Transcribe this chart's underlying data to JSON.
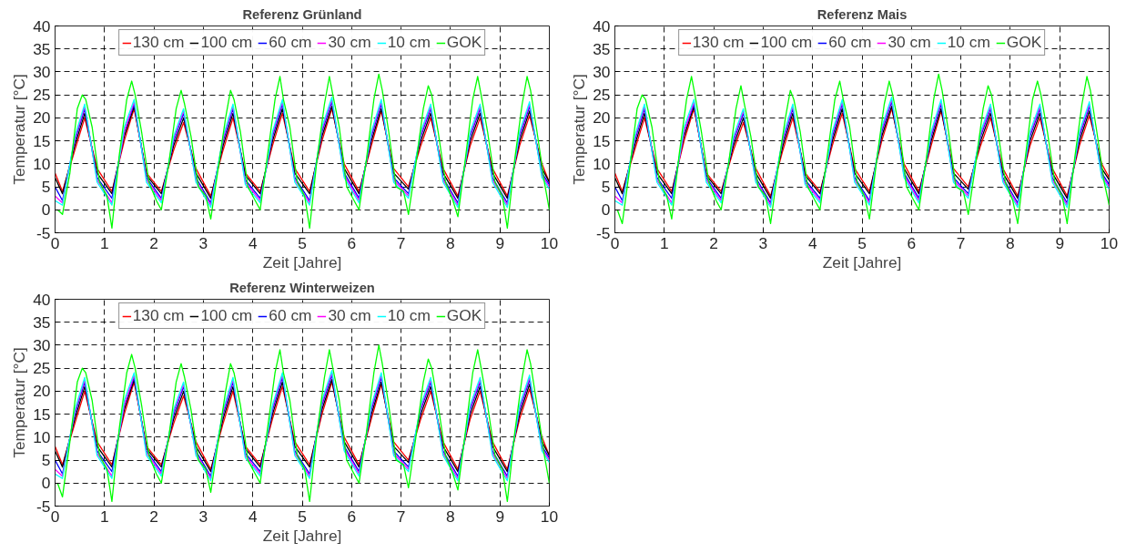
{
  "chart_data": [
    {
      "type": "line",
      "title": "Referenz Grünland",
      "xlabel": "Zeit [Jahre]",
      "ylabel": "Temperatur [°C]",
      "xlim": [
        0,
        10
      ],
      "ylim": [
        -5,
        40
      ],
      "xticks": [
        0,
        1,
        2,
        3,
        4,
        5,
        6,
        7,
        8,
        9,
        10
      ],
      "yticks": [
        -5,
        0,
        5,
        10,
        15,
        20,
        25,
        30,
        35,
        40
      ],
      "grid": true,
      "legend": "top",
      "line_style": "solid",
      "x": [
        0,
        0.15,
        0.4,
        0.6,
        0.85,
        1.15,
        1.4,
        1.6,
        1.85,
        2.15,
        2.4,
        2.6,
        2.85,
        3.15,
        3.4,
        3.6,
        3.85,
        4.15,
        4.4,
        4.6,
        4.85,
        5.15,
        5.4,
        5.6,
        5.85,
        6.15,
        6.4,
        6.6,
        6.85,
        7.15,
        7.4,
        7.6,
        7.85,
        8.15,
        8.4,
        8.6,
        8.85,
        9.15,
        9.4,
        9.6,
        9.85,
        10
      ],
      "series": [
        {
          "name": "130 cm",
          "color": "#ff0000",
          "values": [
            8,
            4,
            13,
            20,
            9,
            4,
            15,
            22,
            8,
            4,
            13,
            19,
            9,
            3,
            13,
            20,
            8,
            4,
            14,
            21,
            9,
            4,
            15,
            22,
            10,
            4,
            14,
            21.5,
            9,
            5,
            14,
            20,
            9,
            3,
            14,
            20,
            9,
            3,
            14,
            20.5,
            10,
            6
          ]
        },
        {
          "name": "100 cm",
          "color": "#000000",
          "values": [
            7,
            3.5,
            14,
            21,
            8,
            3.5,
            16,
            22.5,
            7.5,
            3.5,
            14,
            20,
            8,
            2.5,
            14,
            21,
            7.5,
            3.5,
            15,
            22,
            8,
            3.5,
            16,
            22.5,
            9,
            3.5,
            15,
            22,
            8,
            4.5,
            15,
            21,
            8,
            2.5,
            15,
            21,
            8,
            2.5,
            15,
            21.5,
            9,
            6
          ]
        },
        {
          "name": "60 cm",
          "color": "#0000ff",
          "values": [
            5,
            2,
            15,
            22,
            7,
            2.5,
            17,
            23,
            7,
            2.5,
            15,
            21,
            7,
            1.5,
            15,
            22,
            6.5,
            2.5,
            16,
            23,
            7,
            2,
            17,
            23.5,
            8,
            2.5,
            16,
            23,
            7,
            3.5,
            16,
            22,
            7,
            1.5,
            16,
            22,
            7,
            1.5,
            16,
            22.5,
            8,
            5.5
          ]
        },
        {
          "name": "30 cm",
          "color": "#ff00ff",
          "values": [
            3,
            1.5,
            15.5,
            22.5,
            6.5,
            1.5,
            17,
            23.5,
            6.5,
            2,
            15.5,
            21.5,
            6.5,
            1,
            15.5,
            22.5,
            6,
            2,
            16.5,
            23.5,
            6.5,
            1.5,
            17.5,
            24,
            7.5,
            2,
            16.5,
            23.5,
            6.5,
            3,
            16.5,
            22.5,
            6.5,
            1,
            16.5,
            22.5,
            6.5,
            1,
            16.5,
            23,
            7.5,
            5
          ]
        },
        {
          "name": "10 cm",
          "color": "#00ffff",
          "values": [
            2,
            1,
            16,
            23,
            6,
            1,
            18,
            24,
            6,
            1.5,
            16,
            22,
            6,
            0.5,
            16,
            23,
            5.5,
            1.5,
            17,
            24,
            6,
            1,
            18,
            24.5,
            7,
            1.5,
            17,
            24,
            6,
            2.5,
            17,
            23,
            6,
            0.5,
            17,
            23,
            6,
            0.5,
            17,
            23.5,
            7,
            4.5
          ]
        },
        {
          "name": "GOK",
          "color": "#00ff00",
          "x": [
            0.05,
            0.15,
            0.3,
            0.45,
            0.55,
            0.62,
            0.75,
            0.9,
            1.05,
            1.15,
            1.3,
            1.45,
            1.55,
            1.62,
            1.75,
            1.9,
            2.05,
            2.15,
            2.3,
            2.45,
            2.55,
            2.62,
            2.75,
            2.9,
            3.05,
            3.15,
            3.3,
            3.45,
            3.55,
            3.62,
            3.75,
            3.9,
            4.05,
            4.15,
            4.3,
            4.45,
            4.55,
            4.62,
            4.75,
            4.9,
            5.05,
            5.15,
            5.3,
            5.45,
            5.55,
            5.62,
            5.75,
            5.9,
            6.05,
            6.15,
            6.3,
            6.45,
            6.55,
            6.62,
            6.75,
            6.9,
            7.05,
            7.15,
            7.3,
            7.45,
            7.55,
            7.62,
            7.75,
            7.9,
            8.05,
            8.15,
            8.3,
            8.45,
            8.55,
            8.62,
            8.75,
            8.9,
            9.05,
            9.15,
            9.3,
            9.45,
            9.55,
            9.62,
            9.75,
            9.9,
            10
          ],
          "values": [
            0,
            -1,
            8,
            22,
            25,
            24,
            18,
            6,
            3,
            -4,
            12,
            24,
            28,
            25,
            17,
            6,
            2,
            0,
            10,
            22,
            26,
            23,
            16,
            5,
            3,
            -2,
            9,
            20,
            26,
            24,
            17,
            5,
            2,
            0,
            12,
            24,
            29,
            24,
            18,
            6,
            3,
            -4,
            11,
            23,
            29,
            25,
            18,
            5,
            2,
            0,
            11,
            24,
            29.5,
            26,
            17,
            5,
            4,
            -1,
            10,
            22,
            27,
            25,
            17,
            6,
            2,
            -1.5,
            11,
            24,
            29,
            25,
            17,
            6,
            3,
            -4,
            11,
            23,
            29,
            26,
            17,
            6,
            0
          ]
        }
      ]
    },
    {
      "type": "line",
      "title": "Referenz Mais",
      "xlabel": "Zeit [Jahre]",
      "ylabel": "Temperatur [°C]",
      "xlim": [
        0,
        10
      ],
      "ylim": [
        -5,
        40
      ],
      "xticks": [
        0,
        1,
        2,
        3,
        4,
        5,
        6,
        7,
        8,
        9,
        10
      ],
      "yticks": [
        -5,
        0,
        5,
        10,
        15,
        20,
        25,
        30,
        35,
        40
      ],
      "grid": true,
      "legend": "top",
      "line_style": "solid",
      "x": [
        0,
        0.15,
        0.4,
        0.6,
        0.85,
        1.15,
        1.4,
        1.6,
        1.85,
        2.15,
        2.4,
        2.6,
        2.85,
        3.15,
        3.4,
        3.6,
        3.85,
        4.15,
        4.4,
        4.6,
        4.85,
        5.15,
        5.4,
        5.6,
        5.85,
        6.15,
        6.4,
        6.6,
        6.85,
        7.15,
        7.4,
        7.6,
        7.85,
        8.15,
        8.4,
        8.6,
        8.85,
        9.15,
        9.4,
        9.6,
        9.85,
        10
      ],
      "series": [
        {
          "name": "130 cm",
          "color": "#ff0000",
          "values": [
            8,
            4,
            13,
            20,
            9,
            4,
            15,
            22,
            8,
            4,
            13,
            19,
            9,
            3,
            13,
            20,
            8,
            4,
            14,
            21,
            9,
            4,
            15,
            22,
            10,
            4,
            14,
            21.5,
            9,
            5,
            14,
            20,
            9,
            3,
            14,
            20,
            9,
            3,
            14,
            20.5,
            10,
            7
          ]
        },
        {
          "name": "100 cm",
          "color": "#000000",
          "values": [
            7,
            3.5,
            14,
            21,
            8,
            3.5,
            16,
            22.5,
            7.5,
            3.5,
            14,
            20,
            8,
            2.5,
            14,
            21,
            7.5,
            3.5,
            15,
            22,
            8,
            3.5,
            16,
            22.5,
            9,
            3.5,
            15,
            22,
            8,
            4.5,
            15,
            21,
            8,
            2.5,
            15,
            21,
            8,
            2.5,
            15,
            21.5,
            9,
            6.5
          ]
        },
        {
          "name": "60 cm",
          "color": "#0000ff",
          "values": [
            5,
            2,
            15,
            22,
            7,
            2.5,
            17,
            23,
            7,
            2.5,
            15,
            21,
            7,
            1.5,
            15,
            22,
            6.5,
            2.5,
            16,
            23,
            7,
            2,
            17,
            23.5,
            8,
            2.5,
            16,
            23,
            7,
            3.5,
            16,
            22,
            7,
            1.5,
            16,
            22,
            7,
            1.5,
            16,
            22.5,
            8,
            5.5
          ]
        },
        {
          "name": "30 cm",
          "color": "#ff00ff",
          "values": [
            3,
            1.5,
            15.5,
            22.5,
            6.5,
            1.5,
            17,
            23.5,
            6.5,
            2,
            15.5,
            21.5,
            6.5,
            1,
            15.5,
            22.5,
            6,
            2,
            16.5,
            23.5,
            6.5,
            1.5,
            17.5,
            24,
            7.5,
            2,
            16.5,
            23.5,
            6.5,
            3,
            16.5,
            22.5,
            6.5,
            1,
            16.5,
            22.5,
            6.5,
            1,
            16.5,
            23,
            7.5,
            5
          ]
        },
        {
          "name": "10 cm",
          "color": "#00ffff",
          "values": [
            2,
            1,
            16,
            23,
            6,
            1,
            18,
            24,
            6,
            1.5,
            16,
            22,
            6,
            0.5,
            16,
            23,
            5.5,
            1.5,
            17,
            24,
            6,
            1,
            18,
            24.5,
            7,
            1.5,
            17,
            24,
            6,
            2.5,
            17,
            23,
            6,
            0.5,
            17,
            23,
            6,
            0.5,
            17,
            23.5,
            7,
            4.5
          ]
        },
        {
          "name": "GOK",
          "color": "#00ff00",
          "x": [
            0.05,
            0.15,
            0.3,
            0.45,
            0.55,
            0.62,
            0.75,
            0.9,
            1.05,
            1.15,
            1.3,
            1.45,
            1.55,
            1.62,
            1.75,
            1.9,
            2.05,
            2.15,
            2.3,
            2.45,
            2.55,
            2.62,
            2.75,
            2.9,
            3.05,
            3.15,
            3.3,
            3.45,
            3.55,
            3.62,
            3.75,
            3.9,
            4.05,
            4.15,
            4.3,
            4.45,
            4.55,
            4.62,
            4.75,
            4.9,
            5.05,
            5.15,
            5.3,
            5.45,
            5.55,
            5.62,
            5.75,
            5.9,
            6.05,
            6.15,
            6.3,
            6.45,
            6.55,
            6.62,
            6.75,
            6.9,
            7.05,
            7.15,
            7.3,
            7.45,
            7.55,
            7.62,
            7.75,
            7.9,
            8.05,
            8.15,
            8.3,
            8.45,
            8.55,
            8.62,
            8.75,
            8.9,
            9.05,
            9.15,
            9.3,
            9.45,
            9.55,
            9.62,
            9.75,
            9.9,
            10
          ],
          "values": [
            0,
            -3,
            9,
            22,
            25,
            24,
            18,
            6,
            3,
            -2,
            12,
            24,
            29,
            25,
            17,
            6,
            2,
            0,
            10,
            22,
            27,
            23,
            16,
            5,
            3,
            -3,
            9,
            20,
            26,
            24,
            17,
            5,
            2,
            0,
            12,
            24,
            28,
            24,
            18,
            6,
            3,
            -2,
            11,
            23,
            28,
            25,
            18,
            5,
            2,
            0,
            11,
            24,
            29.5,
            26,
            17,
            5,
            4,
            -1,
            10,
            22,
            27,
            25,
            17,
            6,
            2,
            -3,
            11,
            24,
            28,
            25,
            17,
            6,
            3,
            -3,
            11,
            23,
            29,
            26,
            17,
            6,
            1
          ]
        }
      ]
    },
    {
      "type": "line",
      "title": "Referenz Winterweizen",
      "xlabel": "Zeit [Jahre]",
      "ylabel": "Temperatur [°C]",
      "xlim": [
        0,
        10
      ],
      "ylim": [
        -5,
        40
      ],
      "xticks": [
        0,
        1,
        2,
        3,
        4,
        5,
        6,
        7,
        8,
        9,
        10
      ],
      "yticks": [
        -5,
        0,
        5,
        10,
        15,
        20,
        25,
        30,
        35,
        40
      ],
      "grid": true,
      "legend": "top",
      "line_style": "solid",
      "x": [
        0,
        0.15,
        0.4,
        0.6,
        0.85,
        1.15,
        1.4,
        1.6,
        1.85,
        2.15,
        2.4,
        2.6,
        2.85,
        3.15,
        3.4,
        3.6,
        3.85,
        4.15,
        4.4,
        4.6,
        4.85,
        5.15,
        5.4,
        5.6,
        5.85,
        6.15,
        6.4,
        6.6,
        6.85,
        7.15,
        7.4,
        7.6,
        7.85,
        8.15,
        8.4,
        8.6,
        8.85,
        9.15,
        9.4,
        9.6,
        9.85,
        10
      ],
      "series": [
        {
          "name": "130 cm",
          "color": "#ff0000",
          "values": [
            8,
            4,
            13,
            20,
            9,
            4,
            15,
            22,
            8,
            4,
            13,
            19,
            9,
            3,
            13,
            20,
            8,
            4,
            14,
            21,
            9,
            4,
            15,
            22,
            10,
            4,
            14,
            21.5,
            9,
            5,
            14,
            20,
            9,
            3,
            14,
            20,
            9,
            3,
            14,
            20.5,
            10,
            6
          ]
        },
        {
          "name": "100 cm",
          "color": "#000000",
          "values": [
            7,
            3.5,
            14,
            21,
            8,
            3.5,
            16,
            22.5,
            7.5,
            3.5,
            14,
            20,
            8,
            2.5,
            14,
            21,
            7.5,
            3.5,
            15,
            22,
            8,
            3.5,
            16,
            22.5,
            9,
            3.5,
            15,
            22,
            8,
            4.5,
            15,
            21,
            8,
            2.5,
            15,
            21,
            8,
            2.5,
            15,
            21.5,
            9,
            6
          ]
        },
        {
          "name": "60 cm",
          "color": "#0000ff",
          "values": [
            5,
            2,
            15,
            22,
            7,
            2.5,
            17,
            23,
            7,
            2.5,
            15,
            21,
            7,
            1.5,
            15,
            22,
            6.5,
            2.5,
            16,
            23,
            7,
            2,
            17,
            23.5,
            8,
            2.5,
            16,
            23,
            7,
            3.5,
            16,
            22,
            7,
            1.5,
            16,
            22,
            7,
            1.5,
            16,
            22.5,
            8,
            5.5
          ]
        },
        {
          "name": "30 cm",
          "color": "#ff00ff",
          "values": [
            3,
            1.5,
            15.5,
            22.5,
            6.5,
            1.5,
            17,
            23.5,
            6.5,
            2,
            15.5,
            21.5,
            6.5,
            1,
            15.5,
            22.5,
            6,
            2,
            16.5,
            23.5,
            6.5,
            1.5,
            17.5,
            24,
            7.5,
            2,
            16.5,
            23.5,
            6.5,
            3,
            16.5,
            22.5,
            6.5,
            1,
            16.5,
            22.5,
            6.5,
            1,
            16.5,
            23,
            7.5,
            5
          ]
        },
        {
          "name": "10 cm",
          "color": "#00ffff",
          "values": [
            2,
            1,
            16,
            23,
            6,
            1,
            18,
            24,
            6,
            1.5,
            16,
            22,
            6,
            0.5,
            16,
            23,
            5.5,
            1.5,
            17,
            24,
            6,
            1,
            18,
            24.5,
            7,
            1.5,
            17,
            24,
            6,
            2.5,
            17,
            23,
            6,
            0.5,
            17,
            23,
            6,
            0.5,
            17,
            23.5,
            7,
            4.5
          ]
        },
        {
          "name": "GOK",
          "color": "#00ff00",
          "x": [
            0.05,
            0.15,
            0.3,
            0.45,
            0.55,
            0.62,
            0.75,
            0.9,
            1.05,
            1.15,
            1.3,
            1.45,
            1.55,
            1.62,
            1.75,
            1.9,
            2.05,
            2.15,
            2.3,
            2.45,
            2.55,
            2.62,
            2.75,
            2.9,
            3.05,
            3.15,
            3.3,
            3.45,
            3.55,
            3.62,
            3.75,
            3.9,
            4.05,
            4.15,
            4.3,
            4.45,
            4.55,
            4.62,
            4.75,
            4.9,
            5.05,
            5.15,
            5.3,
            5.45,
            5.55,
            5.62,
            5.75,
            5.9,
            6.05,
            6.15,
            6.3,
            6.45,
            6.55,
            6.62,
            6.75,
            6.9,
            7.05,
            7.15,
            7.3,
            7.45,
            7.55,
            7.62,
            7.75,
            7.9,
            8.05,
            8.15,
            8.3,
            8.45,
            8.55,
            8.62,
            8.75,
            8.9,
            9.05,
            9.15,
            9.3,
            9.45,
            9.55,
            9.62,
            9.75,
            9.9,
            10
          ],
          "values": [
            0,
            -3,
            9,
            22,
            25,
            24,
            18,
            6,
            3,
            -4,
            12,
            24,
            28,
            25,
            17,
            6,
            2,
            0,
            10,
            22,
            26,
            23,
            16,
            5,
            3,
            -2,
            9,
            20,
            26,
            24,
            17,
            5,
            2,
            0,
            12,
            24,
            29,
            24,
            18,
            6,
            3,
            -4,
            11,
            23,
            29,
            25,
            18,
            5,
            2,
            0,
            11,
            24,
            30,
            26,
            17,
            5,
            4,
            -1,
            10,
            22,
            27,
            25,
            17,
            6,
            2,
            -1.5,
            11,
            24,
            29,
            25,
            17,
            6,
            3,
            -4,
            11,
            23,
            29,
            26,
            17,
            6,
            0
          ]
        }
      ]
    }
  ]
}
